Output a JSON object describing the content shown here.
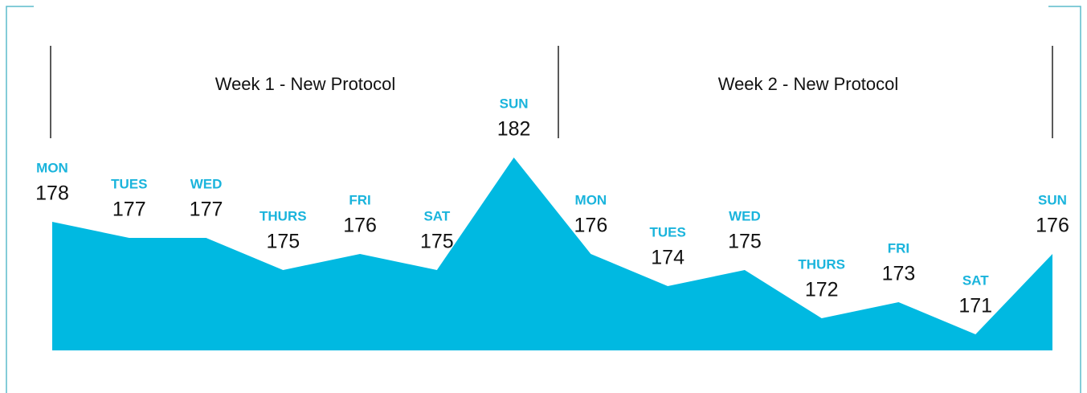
{
  "chart_data": {
    "type": "area",
    "annotations": [
      "Week 1 - New Protocol",
      "Week 2 - New Protocol"
    ],
    "categories": [
      "MON",
      "TUES",
      "WED",
      "THURS",
      "FRI",
      "SAT",
      "SUN",
      "MON",
      "TUES",
      "WED",
      "THURS",
      "FRI",
      "SAT",
      "SUN"
    ],
    "values": [
      178,
      177,
      177,
      175,
      176,
      175,
      182,
      176,
      174,
      175,
      172,
      173,
      171,
      176
    ],
    "color": "#00b9e1",
    "label_color": "#1ab4dc",
    "ylim": [
      170,
      182
    ]
  }
}
